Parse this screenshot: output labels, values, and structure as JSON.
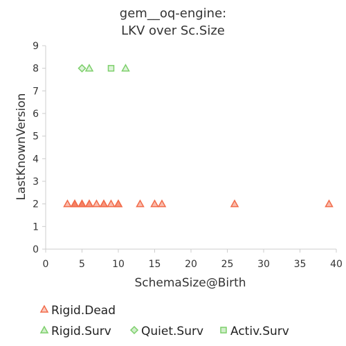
{
  "chart_data": {
    "type": "scatter",
    "title_lines": [
      "gem__oq-engine:",
      "LKV over Sc.Size"
    ],
    "xlabel": "SchemaSize@Birth",
    "ylabel": "LastKnownVersion",
    "xlim": [
      0,
      40
    ],
    "ylim": [
      0,
      9
    ],
    "xticks": [
      0,
      5,
      10,
      15,
      20,
      25,
      30,
      35,
      40
    ],
    "yticks": [
      0,
      1,
      2,
      3,
      4,
      5,
      6,
      7,
      8,
      9
    ],
    "grid": false,
    "legend_position": "bottom",
    "series": [
      {
        "name": "Rigid.Dead",
        "marker": "triangle",
        "color": "#f26b4a",
        "points": [
          [
            3,
            2
          ],
          [
            4,
            2
          ],
          [
            5,
            2
          ],
          [
            6,
            2
          ],
          [
            7,
            2
          ],
          [
            8,
            2
          ],
          [
            9,
            2
          ],
          [
            10,
            2
          ],
          [
            13,
            2
          ],
          [
            15,
            2
          ],
          [
            16,
            2
          ],
          [
            26,
            2
          ],
          [
            39,
            2
          ],
          [
            4,
            2
          ],
          [
            5,
            2
          ],
          [
            6,
            2
          ],
          [
            8,
            2
          ],
          [
            10,
            2
          ],
          [
            5,
            2
          ],
          [
            4,
            2
          ]
        ]
      },
      {
        "name": "Rigid.Surv",
        "marker": "triangle",
        "color": "#7ccf6a",
        "points": [
          [
            6,
            8
          ],
          [
            11,
            8
          ]
        ]
      },
      {
        "name": "Quiet.Surv",
        "marker": "diamond",
        "color": "#7ccf6a",
        "points": [
          [
            5,
            8
          ]
        ]
      },
      {
        "name": "Activ.Surv",
        "marker": "square",
        "color": "#7ccf6a",
        "points": [
          [
            9,
            8
          ]
        ]
      }
    ]
  }
}
